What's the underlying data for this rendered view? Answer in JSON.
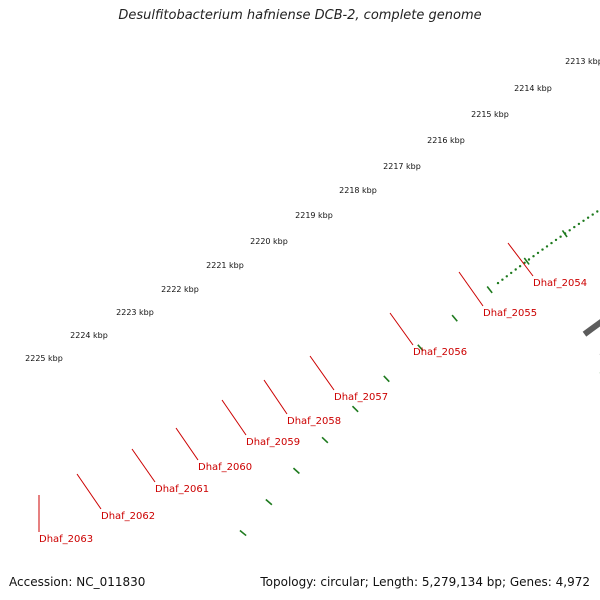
{
  "title": "Desulfitobacterium hafniense DCB-2, complete genome",
  "accession_text": "Accession: NC_011830",
  "summary_text": "Topology: circular; Length: 5,279,134 bp; Genes: 4,972",
  "colors": {
    "backbone": "#8c8c8c",
    "forward_cds": "#ee0000",
    "cog_cyan": "#00e5e5",
    "cog_dark_gray": "#555555",
    "cog_light_gray": "#bbbbbb",
    "cog_steel_blue": "#4a7fb0",
    "cog_blue": "#1a1aee",
    "gc_ticks": "#1e7a1e",
    "gene_label": "#cc0000"
  },
  "scale_labels": [
    "2213 kbp",
    "2214 kbp",
    "2215 kbp",
    "2216 kbp",
    "2217 kbp",
    "2218 kbp",
    "2219 kbp",
    "2220 kbp",
    "2221 kbp",
    "2222 kbp",
    "2223 kbp",
    "2224 kbp",
    "2225 kbp"
  ],
  "gene_labels": [
    "Dhaf_2054",
    "Dhaf_2055",
    "Dhaf_2056",
    "Dhaf_2057",
    "Dhaf_2058",
    "Dhaf_2059",
    "Dhaf_2060",
    "Dhaf_2061",
    "Dhaf_2062",
    "Dhaf_2063"
  ]
}
